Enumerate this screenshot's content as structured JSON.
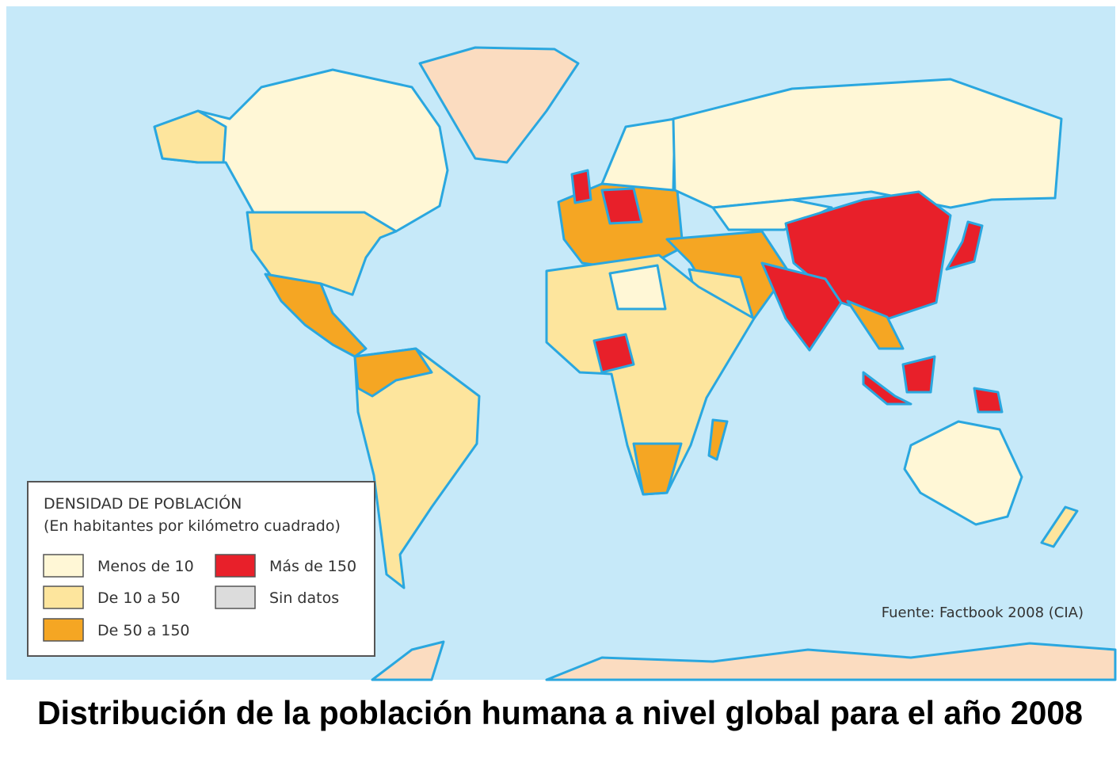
{
  "legend": {
    "title": "DENSIDAD DE POBLACIÓN",
    "subtitle": "(En habitantes por kilómetro cuadrado)",
    "items": [
      {
        "label": "Menos de 10",
        "color": "#fff7d6"
      },
      {
        "label": "De 10 a 50",
        "color": "#fde59d"
      },
      {
        "label": "De 50 a 150",
        "color": "#f5a623"
      },
      {
        "label": "Más de 150",
        "color": "#e8202a"
      },
      {
        "label": "Sin datos",
        "color": "#dcdcdc"
      }
    ]
  },
  "source": "Fuente: Factbook 2008 (CIA)",
  "caption": "Distribución de la población humana a nivel global para el año 2008"
}
